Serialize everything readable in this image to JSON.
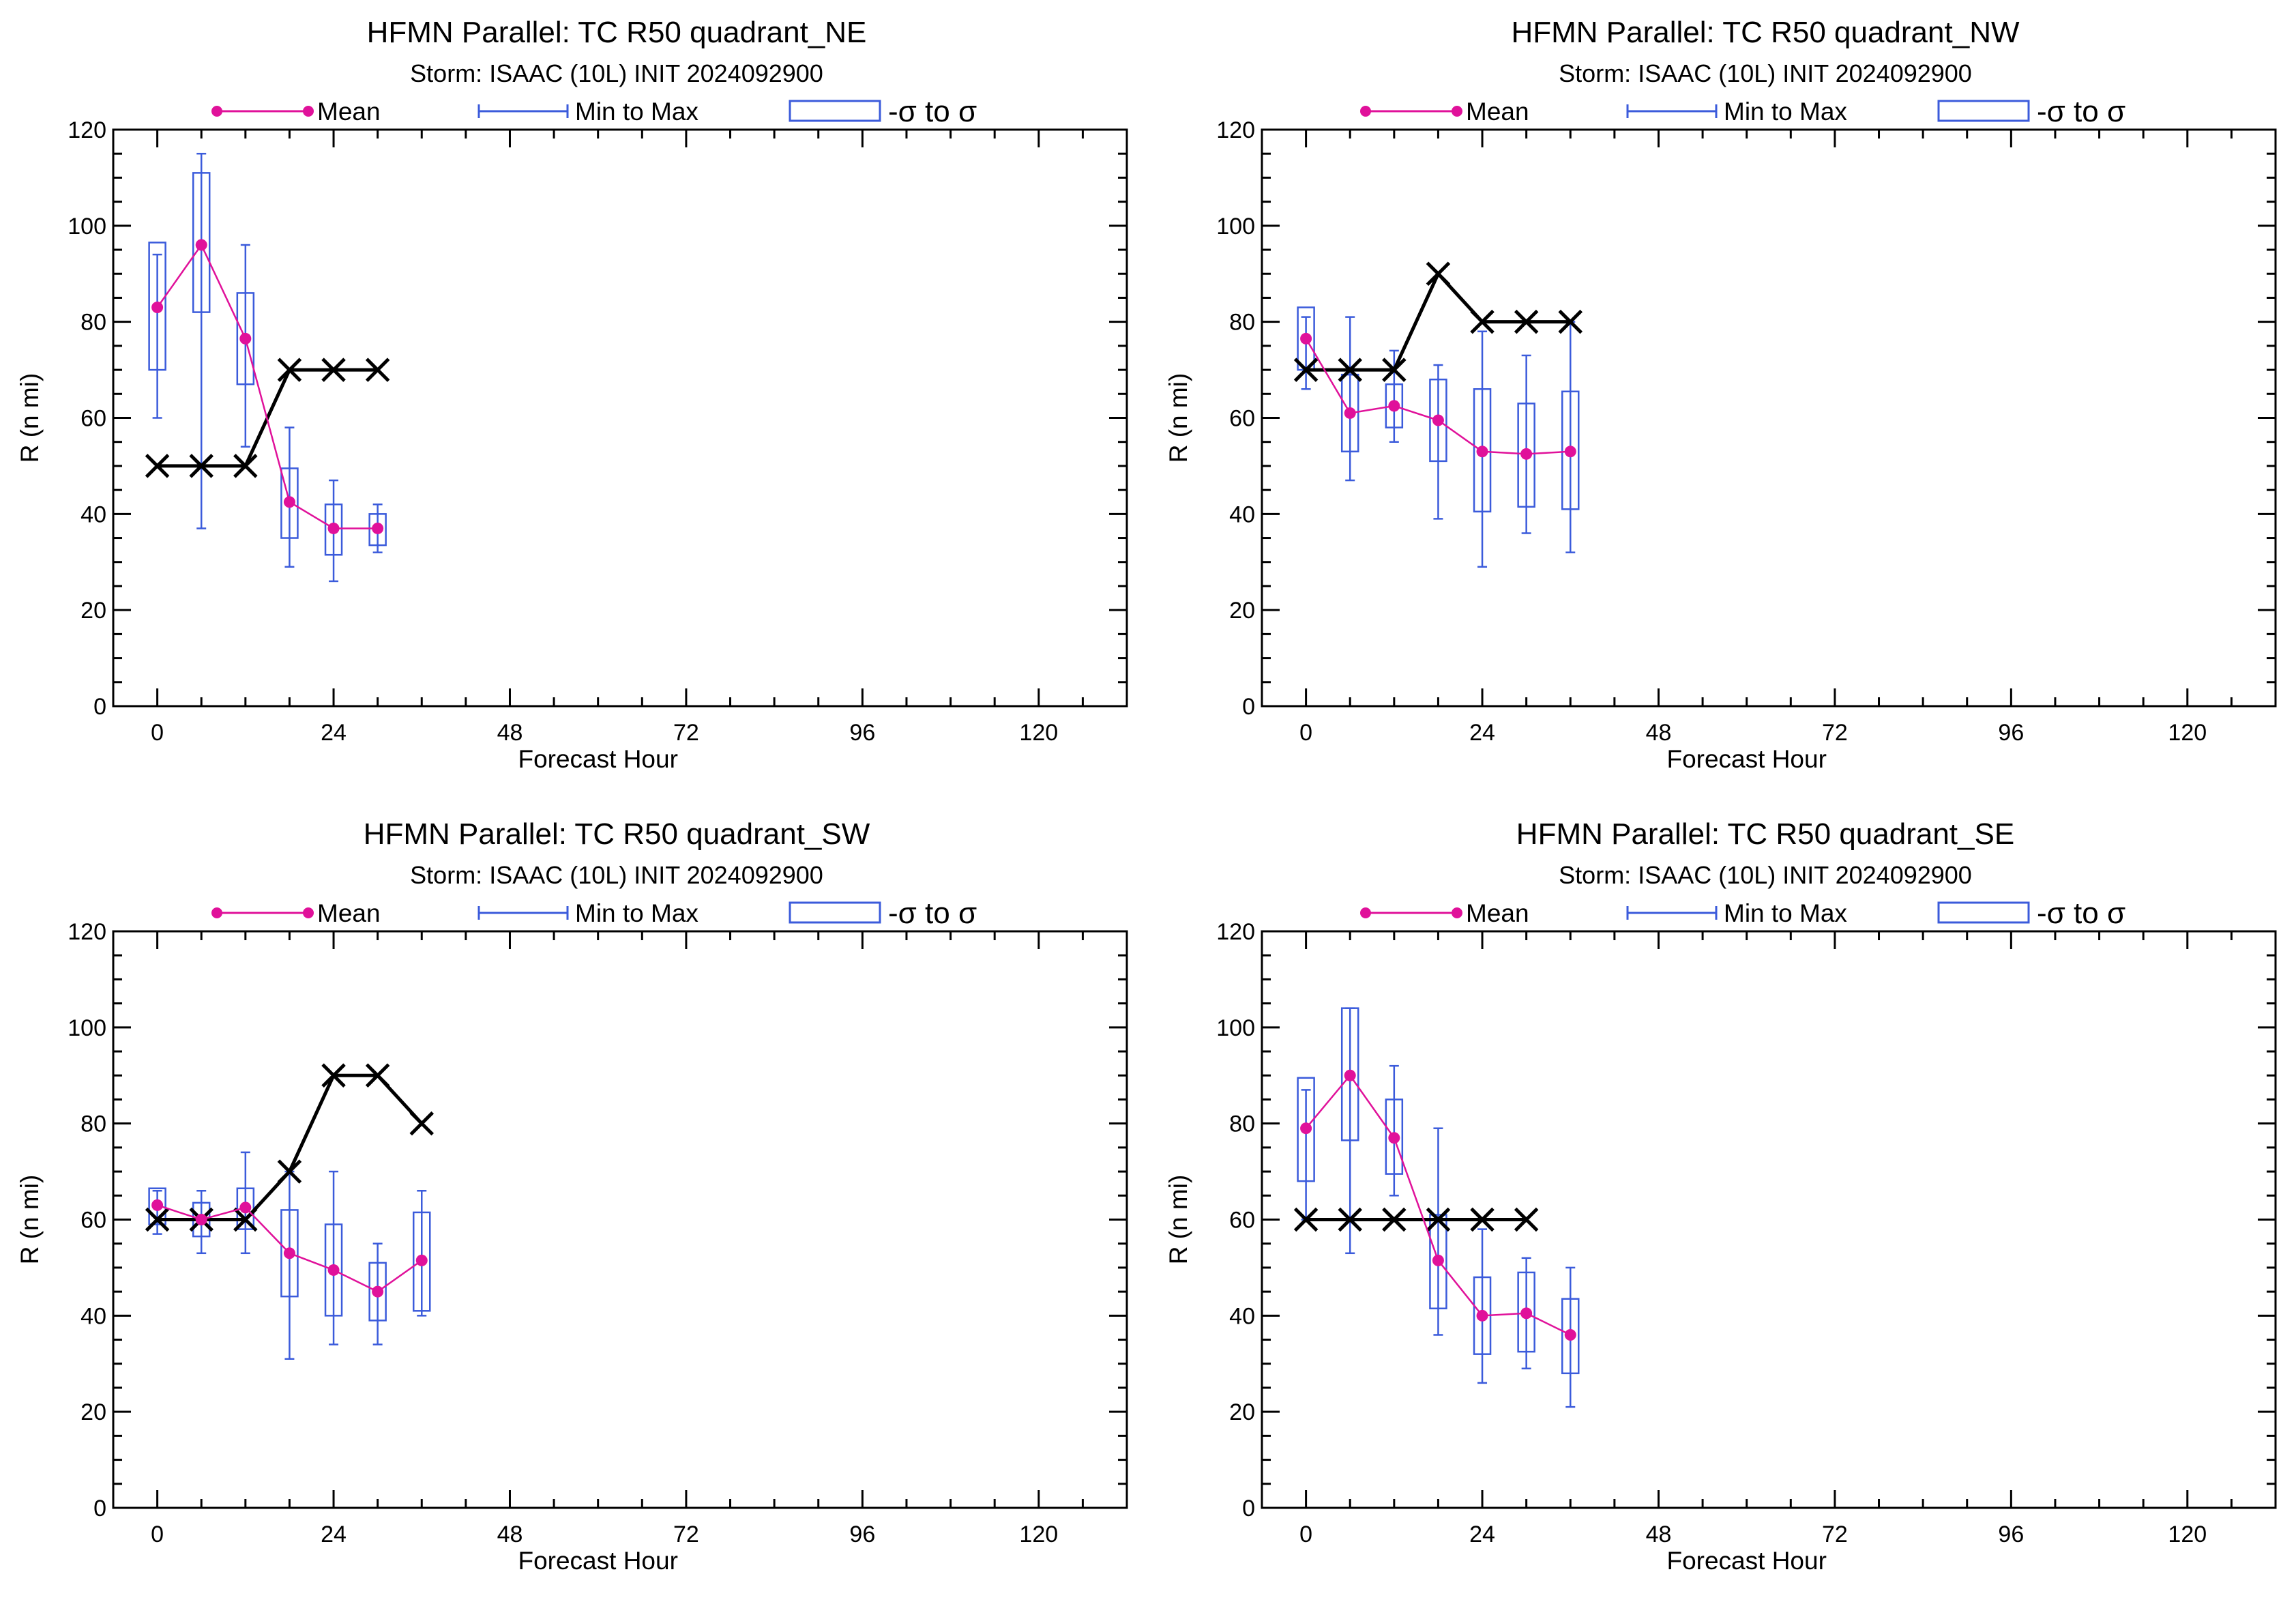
{
  "figure": {
    "legend": {
      "mean": "Mean",
      "minmax": "Min to Max",
      "sigma": "-σ to σ"
    }
  },
  "colors": {
    "mean": "#e0119a",
    "box": "#3b5bdb",
    "observed": "#000000",
    "axes": "#000000"
  },
  "chart_data": [
    {
      "type": "box",
      "title": "HFMN Parallel: TC  R50 quadrant_NE",
      "subtitle": "Storm: ISAAC (10L) INIT 2024092900",
      "xlabel": "Forecast Hour",
      "ylabel": "R (n mi)",
      "xlim": [
        -6,
        132
      ],
      "ylim": [
        0,
        120
      ],
      "xticks": [
        0,
        24,
        48,
        72,
        96,
        120
      ],
      "yticks": [
        0,
        20,
        40,
        60,
        80,
        100,
        120
      ],
      "boxes": [
        {
          "x": 0,
          "min": 60,
          "max": 94,
          "sigma_low": 70,
          "sigma_high": 96.5,
          "mean": 83
        },
        {
          "x": 6,
          "min": 37,
          "max": 115,
          "sigma_low": 82,
          "sigma_high": 111,
          "mean": 96
        },
        {
          "x": 12,
          "min": 54,
          "max": 96,
          "sigma_low": 67,
          "sigma_high": 86,
          "mean": 76.5
        },
        {
          "x": 18,
          "min": 29,
          "max": 58,
          "sigma_low": 35,
          "sigma_high": 49.5,
          "mean": 42.5
        },
        {
          "x": 24,
          "min": 26,
          "max": 47,
          "sigma_low": 31.5,
          "sigma_high": 42,
          "mean": 37
        },
        {
          "x": 30,
          "min": 32,
          "max": 42,
          "sigma_low": 33.5,
          "sigma_high": 40,
          "mean": 37
        }
      ],
      "observed": {
        "x": [
          0,
          6,
          12,
          18,
          24,
          30
        ],
        "y": [
          50,
          50,
          50,
          70,
          70,
          70
        ]
      }
    },
    {
      "type": "box",
      "title": "HFMN Parallel: TC  R50 quadrant_NW",
      "subtitle": "Storm: ISAAC (10L) INIT 2024092900",
      "xlabel": "Forecast Hour",
      "ylabel": "R (n mi)",
      "xlim": [
        -6,
        132
      ],
      "ylim": [
        0,
        120
      ],
      "xticks": [
        0,
        24,
        48,
        72,
        96,
        120
      ],
      "yticks": [
        0,
        20,
        40,
        60,
        80,
        100,
        120
      ],
      "boxes": [
        {
          "x": 0,
          "min": 66,
          "max": 81,
          "sigma_low": 70,
          "sigma_high": 83,
          "mean": 76.5
        },
        {
          "x": 6,
          "min": 47,
          "max": 81,
          "sigma_low": 53,
          "sigma_high": 69,
          "mean": 61
        },
        {
          "x": 12,
          "min": 55,
          "max": 74,
          "sigma_low": 58,
          "sigma_high": 67,
          "mean": 62.5
        },
        {
          "x": 18,
          "min": 39,
          "max": 71,
          "sigma_low": 51,
          "sigma_high": 68,
          "mean": 59.5
        },
        {
          "x": 24,
          "min": 29,
          "max": 78,
          "sigma_low": 40.5,
          "sigma_high": 66,
          "mean": 53
        },
        {
          "x": 30,
          "min": 36,
          "max": 73,
          "sigma_low": 41.5,
          "sigma_high": 63,
          "mean": 52.5
        },
        {
          "x": 36,
          "min": 32,
          "max": 80,
          "sigma_low": 41,
          "sigma_high": 65.5,
          "mean": 53
        }
      ],
      "observed": {
        "x": [
          0,
          6,
          12,
          18,
          24,
          30,
          36
        ],
        "y": [
          70,
          70,
          70,
          90,
          80,
          80,
          80
        ]
      }
    },
    {
      "type": "box",
      "title": "HFMN Parallel: TC  R50 quadrant_SW",
      "subtitle": "Storm: ISAAC (10L) INIT 2024092900",
      "xlabel": "Forecast Hour",
      "ylabel": "R (n mi)",
      "xlim": [
        -6,
        132
      ],
      "ylim": [
        0,
        120
      ],
      "xticks": [
        0,
        24,
        48,
        72,
        96,
        120
      ],
      "yticks": [
        0,
        20,
        40,
        60,
        80,
        100,
        120
      ],
      "boxes": [
        {
          "x": 0,
          "min": 57,
          "max": 66,
          "sigma_low": 59,
          "sigma_high": 66.5,
          "mean": 63
        },
        {
          "x": 6,
          "min": 53,
          "max": 66,
          "sigma_low": 56.5,
          "sigma_high": 63.5,
          "mean": 60
        },
        {
          "x": 12,
          "min": 53,
          "max": 74,
          "sigma_low": 58,
          "sigma_high": 66.5,
          "mean": 62.5
        },
        {
          "x": 18,
          "min": 31,
          "max": 70,
          "sigma_low": 44,
          "sigma_high": 62,
          "mean": 53
        },
        {
          "x": 24,
          "min": 34,
          "max": 70,
          "sigma_low": 40,
          "sigma_high": 59,
          "mean": 49.5
        },
        {
          "x": 30,
          "min": 34,
          "max": 55,
          "sigma_low": 39,
          "sigma_high": 51,
          "mean": 45
        },
        {
          "x": 36,
          "min": 40,
          "max": 66,
          "sigma_low": 41,
          "sigma_high": 61.5,
          "mean": 51.5
        }
      ],
      "observed": {
        "x": [
          0,
          6,
          12,
          18,
          24,
          30,
          36
        ],
        "y": [
          60,
          60,
          60,
          70,
          90,
          90,
          80
        ]
      }
    },
    {
      "type": "box",
      "title": "HFMN Parallel: TC  R50 quadrant_SE",
      "subtitle": "Storm: ISAAC (10L) INIT 2024092900",
      "xlabel": "Forecast Hour",
      "ylabel": "R (n mi)",
      "xlim": [
        -6,
        132
      ],
      "ylim": [
        0,
        120
      ],
      "xticks": [
        0,
        24,
        48,
        72,
        96,
        120
      ],
      "yticks": [
        0,
        20,
        40,
        60,
        80,
        100,
        120
      ],
      "boxes": [
        {
          "x": 0,
          "min": 60,
          "max": 87,
          "sigma_low": 68,
          "sigma_high": 89.5,
          "mean": 79
        },
        {
          "x": 6,
          "min": 53,
          "max": 104,
          "sigma_low": 76.5,
          "sigma_high": 104,
          "mean": 90
        },
        {
          "x": 12,
          "min": 65,
          "max": 92,
          "sigma_low": 69.5,
          "sigma_high": 85,
          "mean": 77
        },
        {
          "x": 18,
          "min": 36,
          "max": 79,
          "sigma_low": 41.5,
          "sigma_high": 61,
          "mean": 51.5
        },
        {
          "x": 24,
          "min": 26,
          "max": 58,
          "sigma_low": 32,
          "sigma_high": 48,
          "mean": 40
        },
        {
          "x": 30,
          "min": 29,
          "max": 52,
          "sigma_low": 32.5,
          "sigma_high": 49,
          "mean": 40.5
        },
        {
          "x": 36,
          "min": 21,
          "max": 50,
          "sigma_low": 28,
          "sigma_high": 43.5,
          "mean": 36
        }
      ],
      "observed": {
        "x": [
          0,
          6,
          12,
          18,
          24,
          30
        ],
        "y": [
          60,
          60,
          60,
          60,
          60,
          60
        ]
      }
    }
  ]
}
